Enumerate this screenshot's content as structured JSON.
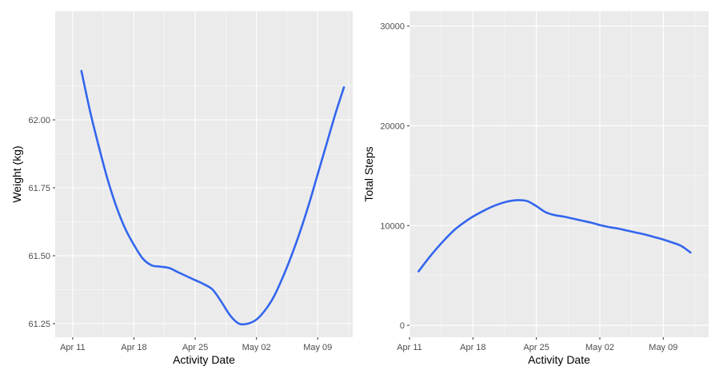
{
  "line_color": "#3366ee",
  "panel_background": "#ebebeb",
  "chart_data": [
    {
      "type": "line",
      "title": "",
      "xlabel": "Activity Date",
      "ylabel": "Weight (kg)",
      "x_tick_labels": [
        "Apr 11",
        "Apr 18",
        "Apr 25",
        "May 02",
        "May 09"
      ],
      "x_tick_dates": [
        "2016-04-11",
        "2016-04-18",
        "2016-04-25",
        "2016-05-02",
        "2016-05-09"
      ],
      "y_tick_labels": [
        "61.25",
        "61.50",
        "61.75",
        "62.00"
      ],
      "y_ticks": [
        61.25,
        61.5,
        61.75,
        62.0
      ],
      "xlim": [
        "2016-04-09",
        "2016-05-13"
      ],
      "ylim": [
        61.2,
        62.4
      ],
      "grid": true,
      "series": [
        {
          "x": [
            "2016-04-12",
            "2016-04-13",
            "2016-04-14",
            "2016-04-15",
            "2016-04-16",
            "2016-04-17",
            "2016-04-18",
            "2016-04-19",
            "2016-04-20",
            "2016-04-21",
            "2016-04-22",
            "2016-04-23",
            "2016-04-24",
            "2016-04-25",
            "2016-04-26",
            "2016-04-27",
            "2016-04-28",
            "2016-04-29",
            "2016-04-30",
            "2016-05-01",
            "2016-05-02",
            "2016-05-03",
            "2016-05-04",
            "2016-05-05",
            "2016-05-06",
            "2016-05-07",
            "2016-05-08",
            "2016-05-09",
            "2016-05-10",
            "2016-05-11",
            "2016-05-12"
          ],
          "y": [
            62.18,
            62.03,
            61.9,
            61.78,
            61.68,
            61.6,
            61.54,
            61.49,
            61.465,
            61.46,
            61.455,
            61.44,
            61.425,
            61.41,
            61.395,
            61.375,
            61.33,
            61.28,
            61.25,
            61.25,
            61.265,
            61.3,
            61.35,
            61.42,
            61.5,
            61.59,
            61.69,
            61.8,
            61.91,
            62.02,
            62.12
          ]
        }
      ]
    },
    {
      "type": "line",
      "title": "",
      "xlabel": "Activity Date",
      "ylabel": "Total Steps",
      "x_tick_labels": [
        "Apr 11",
        "Apr 18",
        "Apr 25",
        "May 02",
        "May 09"
      ],
      "x_tick_dates": [
        "2016-04-11",
        "2016-04-18",
        "2016-04-25",
        "2016-05-02",
        "2016-05-09"
      ],
      "y_tick_labels": [
        "0",
        "10000",
        "20000",
        "30000"
      ],
      "y_ticks": [
        0,
        10000,
        20000,
        30000
      ],
      "xlim": [
        "2016-04-11",
        "2016-05-14"
      ],
      "ylim": [
        -1200,
        31500
      ],
      "grid": true,
      "series": [
        {
          "x": [
            "2016-04-12",
            "2016-04-13",
            "2016-04-14",
            "2016-04-15",
            "2016-04-16",
            "2016-04-17",
            "2016-04-18",
            "2016-04-19",
            "2016-04-20",
            "2016-04-21",
            "2016-04-22",
            "2016-04-23",
            "2016-04-24",
            "2016-04-25",
            "2016-04-26",
            "2016-04-27",
            "2016-04-28",
            "2016-04-29",
            "2016-04-30",
            "2016-05-01",
            "2016-05-02",
            "2016-05-03",
            "2016-05-04",
            "2016-05-05",
            "2016-05-06",
            "2016-05-07",
            "2016-05-08",
            "2016-05-09",
            "2016-05-10",
            "2016-05-11",
            "2016-05-12"
          ],
          "y": [
            5400,
            6600,
            7700,
            8700,
            9600,
            10300,
            10900,
            11400,
            11850,
            12200,
            12450,
            12550,
            12450,
            11950,
            11350,
            11050,
            10900,
            10700,
            10500,
            10300,
            10050,
            9850,
            9700,
            9500,
            9300,
            9100,
            8850,
            8600,
            8300,
            7950,
            7300
          ]
        }
      ]
    }
  ]
}
